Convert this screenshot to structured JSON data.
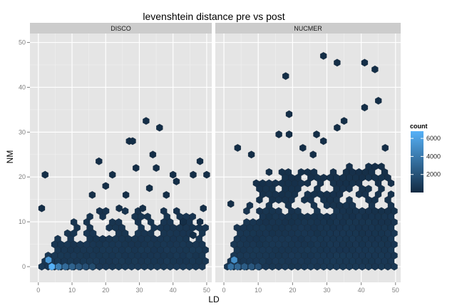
{
  "chart_data": {
    "type": "hexbin",
    "title": "levenshtein distance pre vs post",
    "xlabel": "LD",
    "ylabel": "NM",
    "xlim": [
      -2.5,
      51.5
    ],
    "ylim": [
      -3.5,
      52
    ],
    "xticks": [
      0,
      10,
      20,
      30,
      40,
      50
    ],
    "yticks": [
      0,
      10,
      20,
      30,
      40,
      50
    ],
    "grid": true,
    "legend": {
      "title": "count",
      "position": "right",
      "ticks": [
        2000,
        4000,
        6000
      ],
      "range": [
        1,
        6800
      ],
      "colors": [
        "#132b43",
        "#56b1f7"
      ]
    },
    "facets": [
      {
        "label": "DISCO",
        "series": [
          {
            "ld": 1,
            "nm": 13,
            "count": 150
          },
          {
            "ld": 2,
            "nm": 20.5,
            "count": 150
          },
          {
            "ld": 16,
            "nm": 16,
            "count": 200
          },
          {
            "ld": 18,
            "nm": 23.5,
            "count": 150
          },
          {
            "ld": 20,
            "nm": 18,
            "count": 150
          },
          {
            "ld": 22,
            "nm": 20.5,
            "count": 150
          },
          {
            "ld": 27,
            "nm": 28,
            "count": 150
          },
          {
            "ld": 28,
            "nm": 28,
            "count": 150
          },
          {
            "ld": 29,
            "nm": 22,
            "count": 150
          },
          {
            "ld": 32,
            "nm": 32.5,
            "count": 150
          },
          {
            "ld": 36,
            "nm": 31,
            "count": 150
          },
          {
            "ld": 34,
            "nm": 25,
            "count": 150
          },
          {
            "ld": 35,
            "nm": 22,
            "count": 150
          },
          {
            "ld": 40,
            "nm": 20.5,
            "count": 150
          },
          {
            "ld": 41,
            "nm": 19,
            "count": 150
          },
          {
            "ld": 46,
            "nm": 20.5,
            "count": 150
          },
          {
            "ld": 48,
            "nm": 23.5,
            "count": 150
          },
          {
            "ld": 50,
            "nm": 20.5,
            "count": 150
          },
          {
            "ld": 49,
            "nm": 13,
            "count": 150
          },
          {
            "ld": 33,
            "nm": 17.5,
            "count": 150
          },
          {
            "ld": 38,
            "nm": 16,
            "count": 150
          },
          {
            "ld": 31,
            "nm": 13,
            "count": 200
          },
          {
            "ld": 26,
            "nm": 16,
            "count": 150
          },
          {
            "ld": 24,
            "nm": 13,
            "count": 200
          },
          {
            "ld": 43,
            "nm": 10,
            "count": 150
          },
          {
            "ld": 46,
            "nm": 7,
            "count": 150
          },
          {
            "ld": 48,
            "nm": 10,
            "count": 150
          },
          {
            "ld": 3,
            "nm": 1.5,
            "count": 5500
          },
          {
            "ld": 4,
            "nm": 0,
            "count": 6800
          },
          {
            "ld": 6,
            "nm": 0,
            "count": 4200
          },
          {
            "ld": 8,
            "nm": 0,
            "count": 3200
          },
          {
            "ld": 10,
            "nm": 0,
            "count": 2800
          },
          {
            "ld": 12,
            "nm": 0,
            "count": 2200
          },
          {
            "ld": 14,
            "nm": 0,
            "count": 1800
          },
          {
            "ld": 16,
            "nm": 0,
            "count": 1600
          }
        ],
        "outline": [
          [
            0,
            1.5
          ],
          [
            10,
            10
          ],
          [
            20,
            13
          ],
          [
            30,
            13
          ],
          [
            40,
            13
          ],
          [
            50,
            10
          ]
        ]
      },
      {
        "label": "NUCMER",
        "series": [
          {
            "ld": 2,
            "nm": 14,
            "count": 150
          },
          {
            "ld": 4,
            "nm": 26.5,
            "count": 150
          },
          {
            "ld": 18,
            "nm": 42.5,
            "count": 150
          },
          {
            "ld": 19,
            "nm": 34,
            "count": 150
          },
          {
            "ld": 29,
            "nm": 47,
            "count": 150
          },
          {
            "ld": 33,
            "nm": 45.5,
            "count": 150
          },
          {
            "ld": 41,
            "nm": 45.5,
            "count": 150
          },
          {
            "ld": 44,
            "nm": 44,
            "count": 150
          },
          {
            "ld": 45,
            "nm": 37,
            "count": 150
          },
          {
            "ld": 41,
            "nm": 35.5,
            "count": 150
          },
          {
            "ld": 35,
            "nm": 32.5,
            "count": 150
          },
          {
            "ld": 33,
            "nm": 31,
            "count": 150
          },
          {
            "ld": 27,
            "nm": 29.5,
            "count": 150
          },
          {
            "ld": 29,
            "nm": 28,
            "count": 150
          },
          {
            "ld": 16,
            "nm": 29.5,
            "count": 150
          },
          {
            "ld": 19,
            "nm": 29.5,
            "count": 150
          },
          {
            "ld": 47,
            "nm": 26.5,
            "count": 150
          },
          {
            "ld": 8,
            "nm": 25,
            "count": 150
          },
          {
            "ld": 23,
            "nm": 26.5,
            "count": 150
          },
          {
            "ld": 26,
            "nm": 25,
            "count": 150
          },
          {
            "ld": 2,
            "nm": 0,
            "count": 3500
          },
          {
            "ld": 3,
            "nm": 1.5,
            "count": 5000
          },
          {
            "ld": 4,
            "nm": 0,
            "count": 3000
          },
          {
            "ld": 6,
            "nm": 0,
            "count": 2500
          },
          {
            "ld": 8,
            "nm": 0,
            "count": 2200
          },
          {
            "ld": 10,
            "nm": 0,
            "count": 1800
          }
        ],
        "outline": [
          [
            0,
            1.5
          ],
          [
            6,
            13
          ],
          [
            10,
            20
          ],
          [
            15,
            22
          ],
          [
            20,
            22
          ],
          [
            30,
            22
          ],
          [
            40,
            23
          ],
          [
            50,
            23
          ]
        ]
      }
    ]
  }
}
